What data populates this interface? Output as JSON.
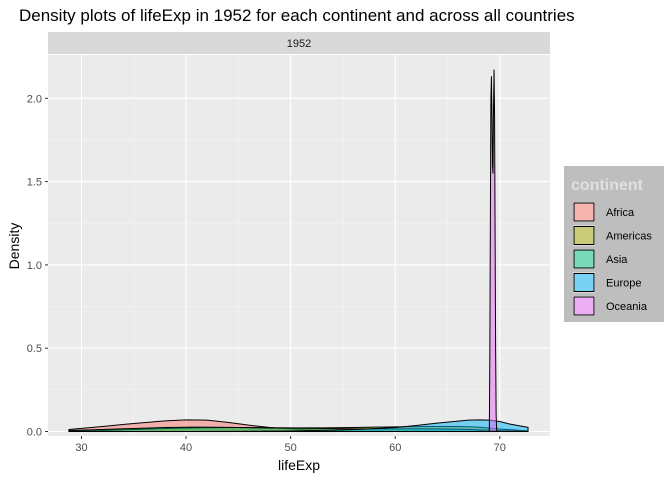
{
  "chart_data": {
    "type": "area",
    "title": "Density plots of lifeExp in 1952 for each continent and across all countries",
    "facet_label": "1952",
    "xlabel": "lifeExp",
    "ylabel": "Density",
    "xlim": [
      26.8,
      74.8
    ],
    "ylim": [
      -0.027,
      2.26
    ],
    "x_ticks": [
      30,
      40,
      50,
      60,
      70
    ],
    "y_ticks": [
      0.0,
      0.5,
      1.0,
      1.5,
      2.0
    ],
    "y_tick_labels": [
      "0.0",
      "0.5",
      "1.0",
      "1.5",
      "2.0"
    ],
    "legend": {
      "title": "continent",
      "position": "right"
    },
    "grid": true,
    "series": [
      {
        "name": "Africa",
        "color": "#F8766D",
        "x": [
          28.8,
          32,
          35,
          38,
          40,
          42,
          44,
          46,
          48,
          50,
          52,
          55,
          58,
          62,
          66,
          70,
          72.7
        ],
        "y": [
          0.012,
          0.03,
          0.048,
          0.064,
          0.07,
          0.068,
          0.055,
          0.038,
          0.024,
          0.015,
          0.009,
          0.004,
          0.002,
          0.001,
          0.0005,
          0.0002,
          0.0001
        ]
      },
      {
        "name": "Americas",
        "color": "#A3A500",
        "x": [
          28.8,
          32,
          35,
          38,
          41,
          44,
          47,
          50,
          53,
          56,
          60,
          63,
          66,
          68,
          70,
          72.7
        ],
        "y": [
          0.002,
          0.006,
          0.012,
          0.018,
          0.022,
          0.024,
          0.023,
          0.022,
          0.022,
          0.024,
          0.028,
          0.03,
          0.03,
          0.026,
          0.015,
          0.004
        ]
      },
      {
        "name": "Asia",
        "color": "#00BF7D",
        "x": [
          28.8,
          32,
          35,
          38,
          41,
          44,
          47,
          50,
          53,
          56,
          60,
          63,
          66,
          68,
          70,
          72.7
        ],
        "y": [
          0.006,
          0.012,
          0.018,
          0.024,
          0.026,
          0.025,
          0.022,
          0.02,
          0.018,
          0.016,
          0.016,
          0.016,
          0.014,
          0.01,
          0.005,
          0.001
        ]
      },
      {
        "name": "Europe",
        "color": "#00B0F6",
        "x": [
          28.8,
          40,
          45,
          50,
          54,
          57,
          60,
          62,
          64,
          66,
          67,
          68,
          69,
          70,
          71,
          72.7
        ],
        "y": [
          0.0,
          0.0,
          0.001,
          0.003,
          0.008,
          0.014,
          0.024,
          0.036,
          0.05,
          0.062,
          0.068,
          0.07,
          0.068,
          0.06,
          0.044,
          0.025
        ]
      },
      {
        "name": "Oceania",
        "color": "#E76BF3",
        "x": [
          69.0,
          69.05,
          69.1,
          69.15,
          69.2,
          69.25,
          69.3,
          69.35,
          69.39,
          69.45,
          69.5,
          69.55,
          69.6,
          69.65,
          69.7
        ],
        "y": [
          0.0,
          0.5,
          1.3,
          2.0,
          2.13,
          1.9,
          1.6,
          1.55,
          1.9,
          2.17,
          1.9,
          1.2,
          0.5,
          0.1,
          0.0
        ]
      }
    ]
  }
}
